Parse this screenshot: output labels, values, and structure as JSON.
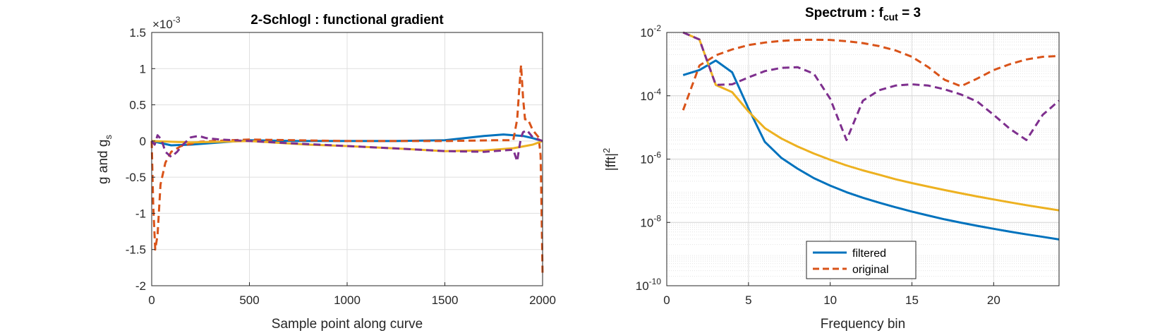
{
  "chart_data": [
    {
      "type": "line",
      "title": "2-Schlogl : functional gradient",
      "xlabel": "Sample point along curve",
      "ylabel": "g and g",
      "ylabel_sub": "s",
      "y_multiplier": "×10",
      "y_multiplier_exp": "-3",
      "xlim": [
        0,
        2000
      ],
      "ylim": [
        -2,
        1.5
      ],
      "xticks": [
        0,
        500,
        1000,
        1500,
        2000
      ],
      "yticks": [
        -2,
        -1.5,
        -1,
        -0.5,
        0,
        0.5,
        1,
        1.5
      ],
      "xtick_labels": [
        "0",
        "500",
        "1000",
        "1500",
        "2000"
      ],
      "ytick_labels": [
        "-2",
        "-1.5",
        "-1",
        "-0.5",
        "0",
        "0.5",
        "1",
        "1.5"
      ],
      "grid": true,
      "series": [
        {
          "color": "#0072BD",
          "dash": false,
          "x": [
            0,
            100,
            200,
            350,
            500,
            750,
            1000,
            1250,
            1500,
            1700,
            1800,
            1900,
            1950,
            2000
          ],
          "y": [
            0,
            -0.06,
            -0.05,
            -0.02,
            0.01,
            0,
            0,
            0,
            0.01,
            0.07,
            0.09,
            0.07,
            0.04,
            0
          ]
        },
        {
          "color": "#D95319",
          "dash": true,
          "x": [
            0,
            8,
            18,
            30,
            45,
            70,
            100,
            150,
            250,
            400,
            500,
            750,
            1000,
            1250,
            1500,
            1750,
            1850,
            1870,
            1880,
            1890,
            1900,
            1910,
            1925,
            1950,
            1980,
            1990,
            1995,
            2000
          ],
          "y": [
            0,
            -0.9,
            -1.5,
            -1.3,
            -0.6,
            -0.3,
            -0.15,
            -0.07,
            -0.01,
            0.01,
            0.02,
            0.01,
            0,
            0,
            0,
            0.01,
            0.01,
            0.3,
            0.7,
            1.05,
            0.6,
            0.3,
            0.3,
            0.15,
            0.05,
            -0.2,
            -1,
            -1.85
          ]
        },
        {
          "color": "#EDB120",
          "dash": false,
          "x": [
            0,
            200,
            500,
            800,
            1000,
            1300,
            1500,
            1700,
            1850,
            1950,
            2000
          ],
          "y": [
            0,
            -0.02,
            0,
            -0.05,
            -0.07,
            -0.11,
            -0.14,
            -0.13,
            -0.1,
            -0.05,
            0
          ]
        },
        {
          "color": "#7E2F8E",
          "dash": true,
          "x": [
            0,
            15,
            30,
            50,
            70,
            100,
            130,
            160,
            200,
            240,
            280,
            350,
            500,
            700,
            1000,
            1300,
            1500,
            1700,
            1850,
            1870,
            1880,
            1890,
            1900,
            1920,
            1950,
            1980,
            2000
          ],
          "y": [
            0,
            -0.05,
            0.08,
            0.02,
            -0.15,
            -0.22,
            -0.15,
            -0.05,
            0.05,
            0.07,
            0.04,
            0.02,
            0,
            -0.03,
            -0.07,
            -0.11,
            -0.14,
            -0.15,
            -0.12,
            -0.28,
            -0.1,
            0.05,
            0.12,
            0.15,
            0.05,
            0.02,
            0
          ]
        }
      ]
    },
    {
      "type": "line",
      "title": "Spectrum : f",
      "title_sub": "cut",
      "title_tail": " = 3",
      "xlabel": "Frequency bin",
      "ylabel": "|fft|",
      "ylabel_sup": "2",
      "xlim": [
        0,
        24
      ],
      "yscale": "log",
      "ylim": [
        1e-10,
        0.01
      ],
      "xticks": [
        0,
        5,
        10,
        15,
        20
      ],
      "xtick_labels": [
        "0",
        "5",
        "10",
        "15",
        "20"
      ],
      "yticks": [
        1e-10,
        1e-08,
        1e-06,
        0.0001,
        0.01
      ],
      "ytick_base": "10",
      "ytick_exps": [
        "-10",
        "-8",
        "-6",
        "-4",
        "-2"
      ],
      "grid": true,
      "minor_grid": true,
      "legend": {
        "location": "bottom-center",
        "entries": [
          "filtered",
          "original"
        ]
      },
      "series": [
        {
          "name": "filtered",
          "color": "#0072BD",
          "dash": false,
          "x": [
            1,
            2,
            3,
            4,
            5,
            6,
            7,
            8,
            9,
            10,
            11,
            12,
            13,
            14,
            15,
            16,
            17,
            18,
            19,
            20,
            21,
            22,
            23,
            24
          ],
          "y": [
            0.00045,
            0.00065,
            0.0013,
            0.00055,
            4e-05,
            3.5e-06,
            1.1e-06,
            5e-07,
            2.5e-07,
            1.45e-07,
            9e-08,
            6e-08,
            4.2e-08,
            3e-08,
            2.2e-08,
            1.65e-08,
            1.25e-08,
            9.8e-09,
            7.8e-09,
            6.3e-09,
            5.1e-09,
            4.2e-09,
            3.5e-09,
            2.9e-09
          ]
        },
        {
          "name": "original",
          "color": "#D95319",
          "dash": true,
          "x": [
            1,
            2,
            3,
            4,
            5,
            6,
            7,
            8,
            9,
            10,
            11,
            12,
            13,
            14,
            15,
            16,
            17,
            18,
            19,
            20,
            21,
            22,
            23,
            24
          ],
          "y": [
            3.5e-05,
            0.0009,
            0.0019,
            0.0029,
            0.004,
            0.0048,
            0.0054,
            0.0058,
            0.0059,
            0.0058,
            0.0053,
            0.0046,
            0.0037,
            0.0027,
            0.0017,
            0.0008,
            0.00032,
            0.0002,
            0.00035,
            0.00065,
            0.001,
            0.0014,
            0.0017,
            0.0018
          ]
        },
        {
          "color": "#EDB120",
          "dash": false,
          "x": [
            1,
            2,
            3,
            4,
            5,
            6,
            7,
            8,
            9,
            10,
            11,
            12,
            13,
            14,
            15,
            16,
            17,
            18,
            19,
            20,
            21,
            22,
            23,
            24
          ],
          "y": [
            0.011,
            0.006,
            0.00022,
            0.00013,
            3.2e-05,
            9.5e-06,
            4.5e-06,
            2.5e-06,
            1.5e-06,
            9.5e-07,
            6.3e-07,
            4.4e-07,
            3.2e-07,
            2.3e-07,
            1.75e-07,
            1.35e-07,
            1.05e-07,
            8.3e-08,
            6.6e-08,
            5.3e-08,
            4.3e-08,
            3.5e-08,
            2.9e-08,
            2.4e-08
          ]
        },
        {
          "color": "#7E2F8E",
          "dash": true,
          "x": [
            1,
            2,
            3,
            4,
            5,
            6,
            7,
            8,
            9,
            10,
            11,
            12,
            13,
            14,
            15,
            16,
            17,
            18,
            19,
            20,
            21,
            22,
            23,
            24
          ],
          "y": [
            0.011,
            0.006,
            0.00022,
            0.00023,
            0.00038,
            0.0006,
            0.00076,
            0.0008,
            0.0005,
            8e-05,
            4e-06,
            7e-05,
            0.00015,
            0.00021,
            0.00023,
            0.00021,
            0.00016,
            0.00011,
            6.5e-05,
            2.5e-05,
            9e-06,
            4e-06,
            2.5e-05,
            7e-05
          ]
        }
      ]
    }
  ]
}
